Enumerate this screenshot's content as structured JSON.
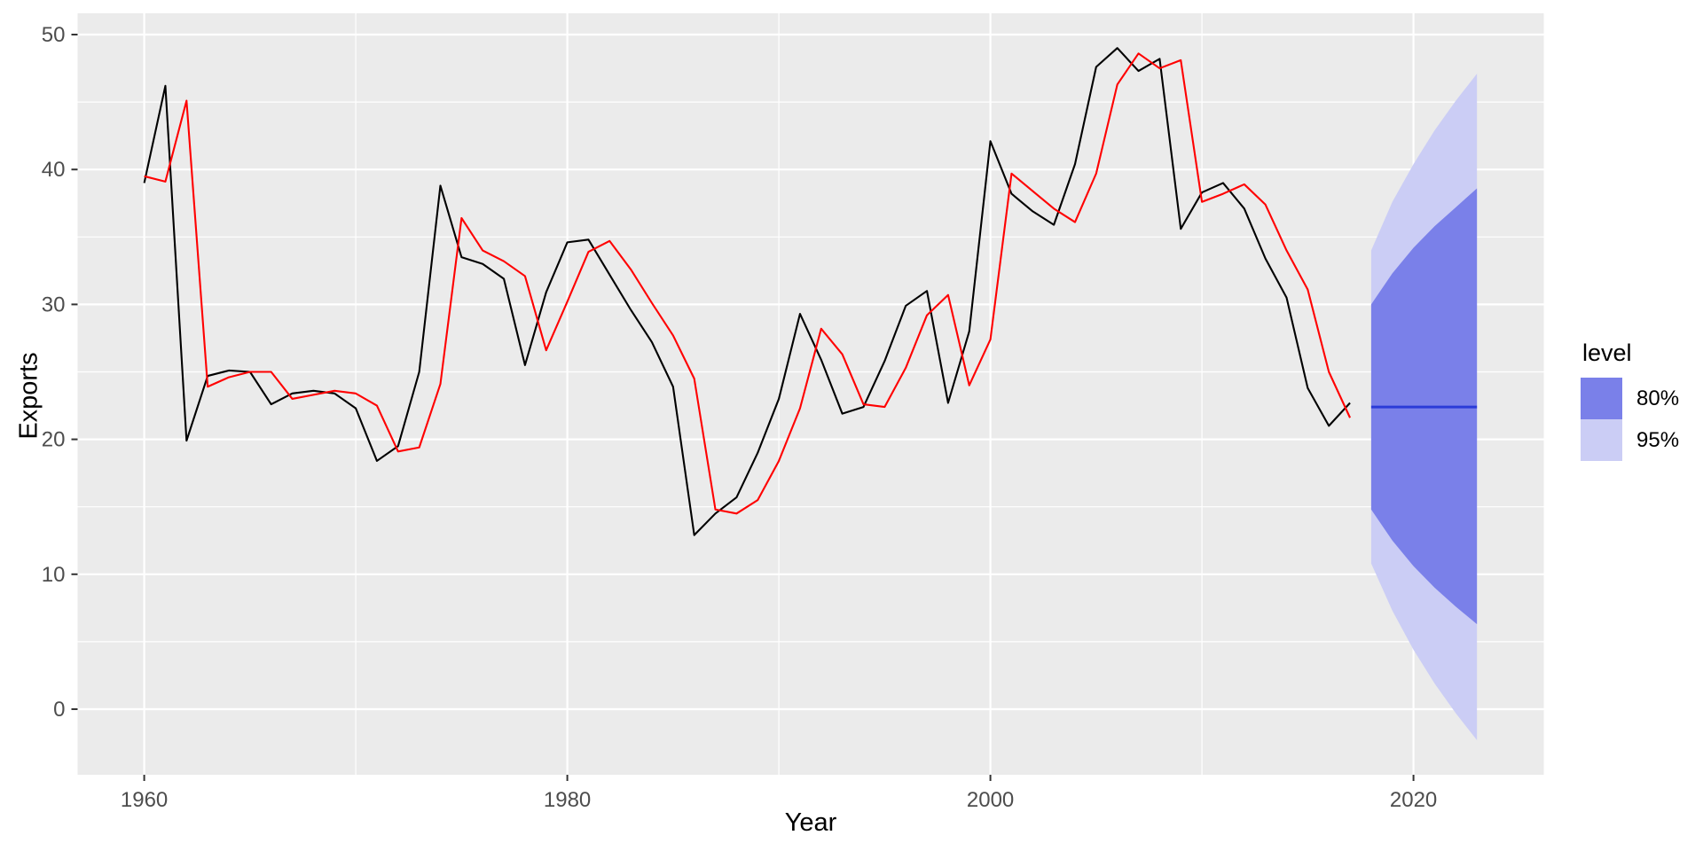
{
  "chart_data": {
    "type": "line",
    "title": "",
    "xlabel": "Year",
    "ylabel": "Exports",
    "x_ticks": [
      1960,
      1980,
      2000,
      2020
    ],
    "x_minor_gridlines": [
      1970,
      1990,
      2010
    ],
    "y_ticks": [
      0,
      10,
      20,
      30,
      40,
      50
    ],
    "y_minor_gridlines": [
      5,
      15,
      25,
      35,
      45
    ],
    "x_range": [
      1956.85,
      2026.15
    ],
    "y_range": [
      -4.9,
      51.6
    ],
    "grid": "on",
    "legend_position": "right",
    "legend": {
      "title": "level",
      "entries": [
        "80%",
        "95%"
      ]
    },
    "series": [
      {
        "name": "actual-exports",
        "color": "#000000",
        "years": [
          1960,
          1961,
          1962,
          1963,
          1964,
          1965,
          1966,
          1967,
          1968,
          1969,
          1970,
          1971,
          1972,
          1973,
          1974,
          1975,
          1976,
          1977,
          1978,
          1979,
          1980,
          1981,
          1982,
          1983,
          1984,
          1985,
          1986,
          1987,
          1988,
          1989,
          1990,
          1991,
          1992,
          1993,
          1994,
          1995,
          1996,
          1997,
          1998,
          1999,
          2000,
          2001,
          2002,
          2003,
          2004,
          2005,
          2006,
          2007,
          2008,
          2009,
          2010,
          2011,
          2012,
          2013,
          2014,
          2015,
          2016,
          2017
        ],
        "values": [
          39.0,
          46.2,
          19.9,
          24.7,
          25.1,
          25.0,
          22.6,
          23.4,
          23.6,
          23.4,
          22.3,
          18.4,
          19.5,
          25.0,
          38.8,
          33.5,
          33.0,
          31.9,
          25.5,
          30.9,
          34.6,
          34.8,
          32.2,
          29.6,
          27.2,
          23.9,
          12.9,
          14.5,
          15.7,
          19.0,
          23.0,
          29.3,
          25.9,
          21.9,
          22.4,
          25.8,
          29.9,
          31.0,
          22.7,
          28.0,
          42.1,
          38.2,
          36.9,
          35.9,
          40.4,
          47.6,
          49.0,
          47.3,
          48.2,
          35.6,
          38.3,
          39.0,
          37.1,
          33.4,
          30.5,
          23.8,
          21.0,
          22.7
        ]
      },
      {
        "name": "fitted-values",
        "color": "#FF0000",
        "years": [
          1960,
          1961,
          1962,
          1963,
          1964,
          1965,
          1966,
          1967,
          1968,
          1969,
          1970,
          1971,
          1972,
          1973,
          1974,
          1975,
          1976,
          1977,
          1978,
          1979,
          1980,
          1981,
          1982,
          1983,
          1984,
          1985,
          1986,
          1987,
          1988,
          1989,
          1990,
          1991,
          1992,
          1993,
          1994,
          1995,
          1996,
          1997,
          1998,
          1999,
          2000,
          2001,
          2002,
          2003,
          2004,
          2005,
          2006,
          2007,
          2008,
          2009,
          2010,
          2011,
          2012,
          2013,
          2014,
          2015,
          2016,
          2017
        ],
        "values": [
          39.5,
          39.1,
          45.1,
          23.9,
          24.6,
          25.0,
          25.0,
          23.0,
          23.3,
          23.6,
          23.4,
          22.5,
          19.1,
          19.4,
          24.1,
          36.4,
          34.0,
          33.2,
          32.1,
          26.6,
          30.2,
          33.9,
          34.7,
          32.6,
          30.1,
          27.7,
          24.5,
          14.8,
          14.5,
          15.5,
          18.4,
          22.3,
          28.2,
          26.3,
          22.6,
          22.4,
          25.3,
          29.2,
          30.7,
          24.0,
          27.4,
          39.7,
          38.4,
          37.1,
          36.1,
          39.7,
          46.3,
          48.6,
          47.5,
          48.1,
          37.6,
          38.2,
          38.9,
          37.4,
          34.0,
          31.1,
          25.0,
          21.6
        ]
      }
    ],
    "forecast": {
      "years": [
        2018,
        2019,
        2020,
        2021,
        2022,
        2023
      ],
      "mean": [
        22.4,
        22.4,
        22.4,
        22.4,
        22.4,
        22.4
      ],
      "hi95": [
        34.0,
        37.6,
        40.4,
        42.9,
        45.1,
        47.1
      ],
      "hi80": [
        30.0,
        32.3,
        34.2,
        35.8,
        37.2,
        38.6
      ],
      "lo80": [
        14.8,
        12.5,
        10.6,
        9.0,
        7.6,
        6.3
      ],
      "lo95": [
        10.8,
        7.3,
        4.4,
        1.9,
        -0.3,
        -2.3
      ]
    },
    "colors": {
      "level80_fill": "#7A80E9",
      "level95_fill": "#CBCDF5",
      "forecast_line": "#2A3BD8",
      "panel_background": "#EBEBEB",
      "gridline": "#FFFFFF",
      "tick_label": "#4D4D4D",
      "tick_mark": "#333333"
    }
  }
}
